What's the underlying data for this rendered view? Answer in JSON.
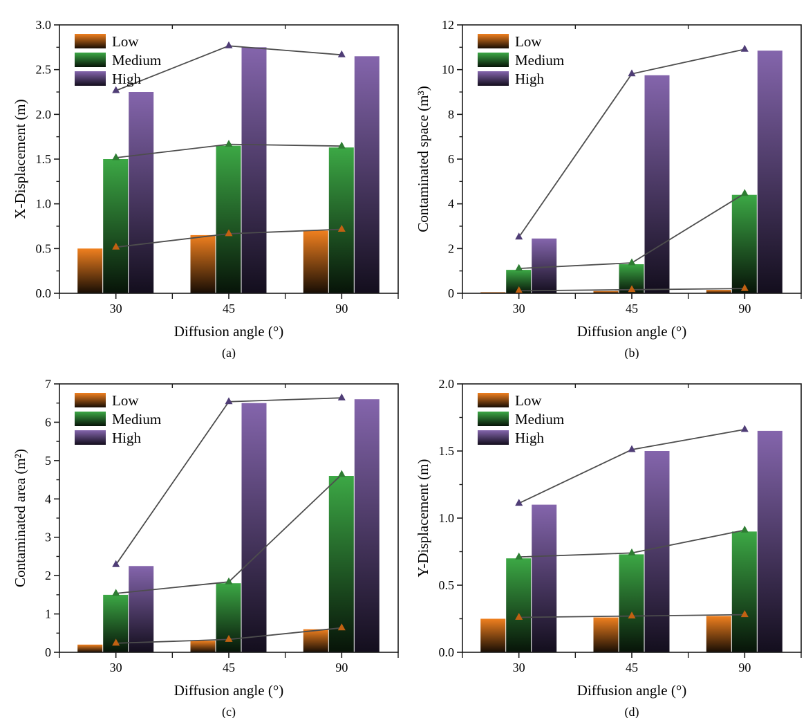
{
  "figure": {
    "background": "#ffffff",
    "axis_color": "#1a1a1a",
    "line_color": "#4d4d4d",
    "palette": {
      "low": {
        "label": "Low",
        "bar_top": "#f0801f",
        "bar_bottom": "#170d04",
        "marker": "#c26112"
      },
      "medium": {
        "label": "Medium",
        "bar_top": "#3ca845",
        "bar_bottom": "#071308",
        "marker": "#2e7d33"
      },
      "high": {
        "label": "High",
        "bar_top": "#8465ac",
        "bar_bottom": "#130e1d",
        "marker": "#4f3d76"
      }
    },
    "legend_entries": [
      "Low",
      "Medium",
      "High"
    ],
    "legend_position": "top-left"
  },
  "chart_data": [
    {
      "type": "bar",
      "panel": "(a)",
      "title": "",
      "xlabel": "Diffusion angle (°)",
      "ylabel": "X-Displacement (m)",
      "categories": [
        "30",
        "45",
        "90"
      ],
      "ylim": [
        0,
        3.0
      ],
      "ytick_step": 0.5,
      "ytick_decimals": 1,
      "grid": false,
      "overlay": "line-with-triangle-markers",
      "series": [
        {
          "name": "Low",
          "key": "low",
          "values": [
            0.5,
            0.65,
            0.7
          ]
        },
        {
          "name": "Medium",
          "key": "medium",
          "values": [
            1.5,
            1.65,
            1.63
          ]
        },
        {
          "name": "High",
          "key": "high",
          "values": [
            2.25,
            2.75,
            2.65
          ]
        }
      ]
    },
    {
      "type": "bar",
      "panel": "(b)",
      "title": "",
      "xlabel": "Diffusion angle (°)",
      "ylabel": "Contaminated space (m³)",
      "categories": [
        "30",
        "45",
        "90"
      ],
      "ylim": [
        0,
        12
      ],
      "ytick_step": 2,
      "ytick_decimals": 0,
      "grid": false,
      "overlay": "line-with-triangle-markers",
      "series": [
        {
          "name": "Low",
          "key": "low",
          "values": [
            0.05,
            0.1,
            0.15
          ]
        },
        {
          "name": "Medium",
          "key": "medium",
          "values": [
            1.05,
            1.3,
            4.4
          ]
        },
        {
          "name": "High",
          "key": "high",
          "values": [
            2.45,
            9.75,
            10.85
          ]
        }
      ]
    },
    {
      "type": "bar",
      "panel": "(c)",
      "title": "",
      "xlabel": "Diffusion angle (°)",
      "ylabel": "Contaminated area (m²)",
      "categories": [
        "30",
        "45",
        "90"
      ],
      "ylim": [
        0,
        7
      ],
      "ytick_step": 1,
      "ytick_decimals": 0,
      "grid": false,
      "overlay": "line-with-triangle-markers",
      "series": [
        {
          "name": "Low",
          "key": "low",
          "values": [
            0.2,
            0.3,
            0.6
          ]
        },
        {
          "name": "Medium",
          "key": "medium",
          "values": [
            1.5,
            1.8,
            4.6
          ]
        },
        {
          "name": "High",
          "key": "high",
          "values": [
            2.25,
            6.5,
            6.6
          ]
        }
      ]
    },
    {
      "type": "bar",
      "panel": "(d)",
      "title": "",
      "xlabel": "Diffusion angle (°)",
      "ylabel": "Y-Displacement (m)",
      "categories": [
        "30",
        "45",
        "90"
      ],
      "ylim": [
        0,
        2.0
      ],
      "ytick_step": 0.5,
      "ytick_decimals": 1,
      "grid": false,
      "overlay": "line-with-triangle-markers",
      "series": [
        {
          "name": "Low",
          "key": "low",
          "values": [
            0.25,
            0.26,
            0.27
          ]
        },
        {
          "name": "Medium",
          "key": "medium",
          "values": [
            0.7,
            0.73,
            0.9
          ]
        },
        {
          "name": "High",
          "key": "high",
          "values": [
            1.1,
            1.5,
            1.65
          ]
        }
      ]
    }
  ]
}
